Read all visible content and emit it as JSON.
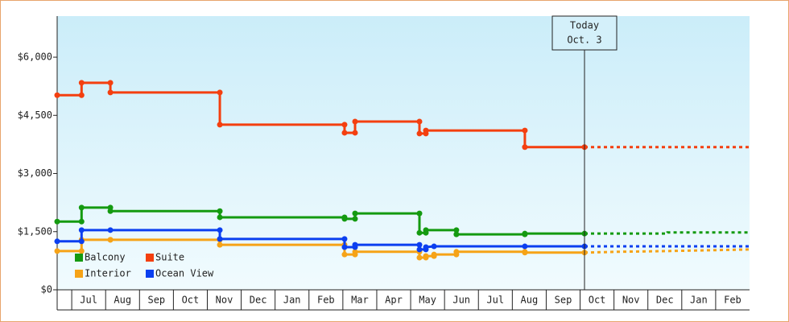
{
  "chart_data": {
    "type": "step-line",
    "categories": [
      null,
      "Jul",
      "Aug",
      "Sep",
      "Oct",
      "Nov",
      "Dec",
      "Jan",
      "Feb",
      "Mar",
      "Apr",
      "May",
      "Jun",
      "Jul",
      "Aug",
      "Sep",
      "Oct",
      "Nov",
      "Dec",
      "Jan",
      "Feb"
    ],
    "xlim": [
      0.57,
      21
    ],
    "ylim": [
      0,
      7060
    ],
    "yticks": [
      {
        "value": 0,
        "label": "$0"
      },
      {
        "value": 1500,
        "label": "$1,500"
      },
      {
        "value": 3000,
        "label": "$3,000"
      },
      {
        "value": 4500,
        "label": "$4,500"
      },
      {
        "value": 6000,
        "label": "$6,000"
      }
    ],
    "annotations": [
      {
        "x": 16.13,
        "lines": [
          "Today",
          "Oct. 3"
        ]
      }
    ],
    "series": [
      {
        "name": "Balcony",
        "color": "#149a10",
        "x": [
          0.57,
          1.29,
          1.29,
          2.14,
          2.14,
          5.37,
          5.37,
          9.05,
          9.05,
          9.36,
          9.36,
          11.26,
          11.26,
          11.45,
          11.45,
          12.35,
          12.35,
          14.37,
          14.37,
          16.13,
          18.58,
          18.58,
          21
        ],
        "values": [
          1760,
          1760,
          2120,
          2120,
          2030,
          2030,
          1870,
          1870,
          1830,
          1830,
          1970,
          1970,
          1470,
          1470,
          1540,
          1540,
          1430,
          1430,
          1450,
          1450,
          1450,
          1480,
          1480
        ]
      },
      {
        "name": "Suite",
        "color": "#f43f0f",
        "x": [
          0.57,
          1.29,
          1.29,
          2.14,
          2.14,
          5.37,
          5.37,
          9.05,
          9.05,
          9.36,
          9.36,
          11.26,
          11.26,
          11.45,
          11.45,
          14.37,
          14.37,
          16.13,
          21
        ],
        "values": [
          5020,
          5020,
          5340,
          5340,
          5090,
          5090,
          4260,
          4260,
          4050,
          4050,
          4340,
          4340,
          4030,
          4030,
          4110,
          4110,
          3680,
          3680,
          3680
        ]
      },
      {
        "name": "Interior",
        "color": "#f6a317",
        "x": [
          0.57,
          1.29,
          1.29,
          2.14,
          2.14,
          5.37,
          5.37,
          9.05,
          9.05,
          9.36,
          9.36,
          11.26,
          11.26,
          11.45,
          11.45,
          11.69,
          11.69,
          12.35,
          12.35,
          14.37,
          14.37,
          16.13,
          17.08,
          18.58,
          21
        ],
        "values": [
          1000,
          1000,
          1290,
          1290,
          1290,
          1290,
          1160,
          1160,
          910,
          910,
          980,
          980,
          830,
          830,
          870,
          870,
          910,
          910,
          980,
          980,
          960,
          960,
          980,
          1000,
          1040
        ]
      },
      {
        "name": "Ocean View",
        "color": "#0b3ff0",
        "x": [
          0.57,
          1.29,
          1.29,
          2.14,
          5.37,
          5.37,
          9.05,
          9.05,
          9.36,
          9.36,
          11.26,
          11.26,
          11.45,
          11.45,
          11.69,
          14.37,
          16.13,
          21
        ],
        "values": [
          1250,
          1250,
          1540,
          1540,
          1540,
          1310,
          1310,
          1100,
          1100,
          1160,
          1160,
          1040,
          1040,
          1100,
          1120,
          1120,
          1120,
          1120
        ]
      }
    ]
  }
}
